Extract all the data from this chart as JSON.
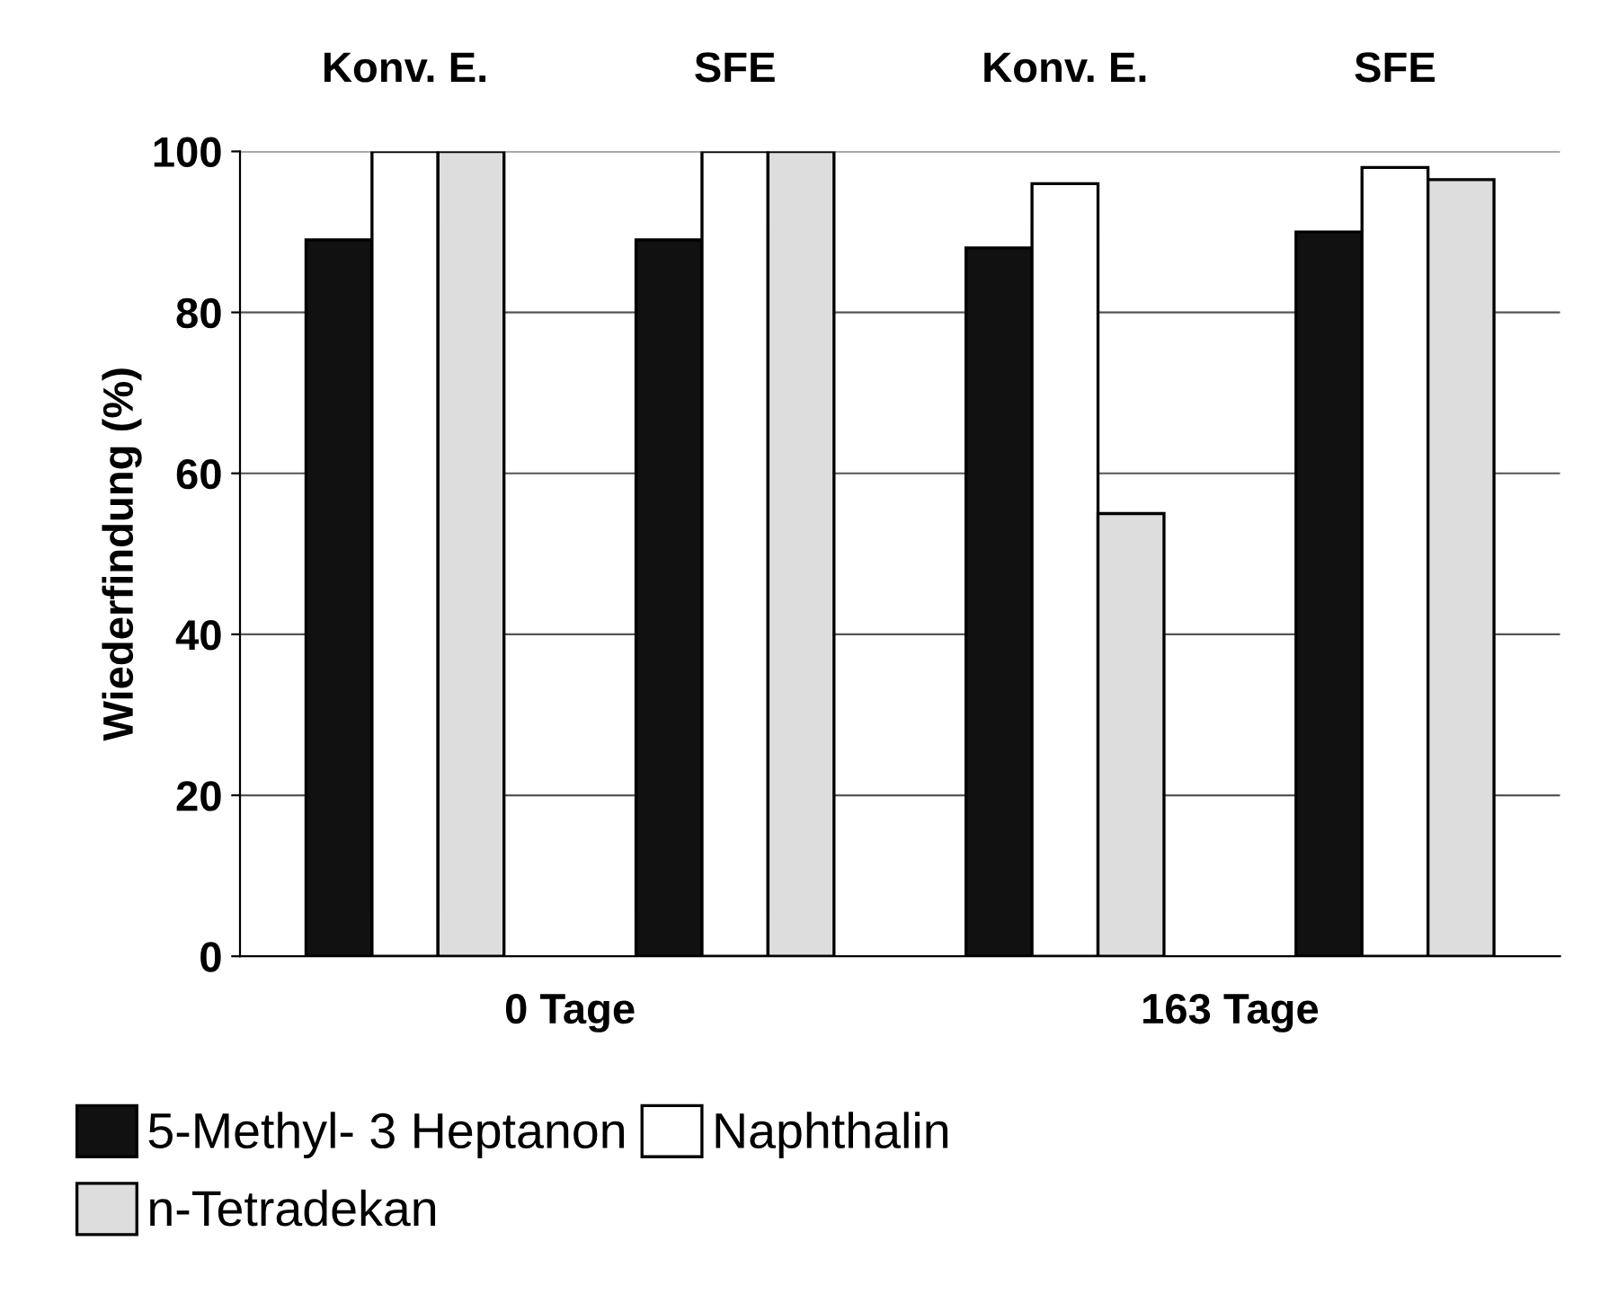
{
  "chart_data": {
    "type": "bar",
    "categories": [
      "Konv. E.",
      "SFE",
      "Konv. E.",
      "SFE"
    ],
    "ylabel": "Wiederfindung (%)",
    "series": [
      {
        "name": "5-Methyl- 3 Heptanon",
        "color": "#111111",
        "values": [
          89,
          89,
          88,
          90
        ]
      },
      {
        "name": "Naphthalin",
        "color": "#ffffff",
        "values": [
          100,
          100,
          96,
          98
        ]
      },
      {
        "name": "n-Tetradekan",
        "color": "#dddddd",
        "values": [
          100,
          100,
          55,
          96.5
        ]
      }
    ],
    "annotations": [
      "0 Tage",
      "163 Tage"
    ],
    "ylim": [
      0,
      100
    ],
    "yticks": [
      0,
      20,
      40,
      60,
      80,
      100
    ],
    "grid": "y",
    "legend": "bottom"
  }
}
